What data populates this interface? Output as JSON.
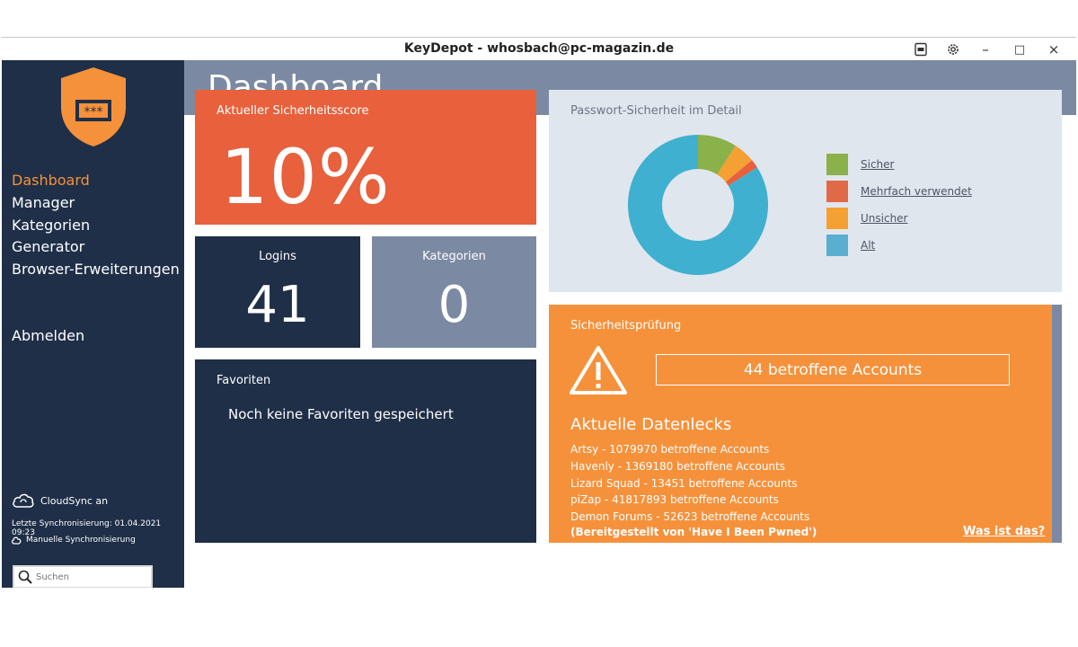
{
  "window": {
    "title": "KeyDepot - whosbach@pc-magazin.de",
    "controls": {
      "minimize": "–",
      "maximize": "□",
      "close": "×"
    },
    "icons": [
      "report-icon",
      "gear-icon"
    ]
  },
  "logo": {
    "text": "***",
    "color": "#f6913b"
  },
  "sidebar": {
    "items": [
      {
        "label": "Dashboard",
        "active": true
      },
      {
        "label": "Manager",
        "active": false
      },
      {
        "label": "Kategorien",
        "active": false
      },
      {
        "label": "Generator",
        "active": false
      },
      {
        "label": "Browser-Erweiterungen",
        "active": false
      }
    ],
    "logout_label": "Abmelden",
    "cloudsync_label": "CloudSync an",
    "last_sync": "Letzte Synchronisierung: 01.04.2021 09:23",
    "manual_sync_label": "Manuelle Synchronisierung",
    "search_placeholder": "Suchen"
  },
  "header": {
    "title": "Dashboard"
  },
  "score": {
    "label": "Aktueller Sicherheitsscore",
    "value": "10%"
  },
  "logins": {
    "label": "Logins",
    "value": "41"
  },
  "categories": {
    "label": "Kategorien",
    "value": "0"
  },
  "favorites": {
    "label": "Favoriten",
    "empty_text": "Noch keine Favoriten gespeichert"
  },
  "detail": {
    "label": "Passwort-Sicherheit im Detail",
    "legend": [
      {
        "label": "Sicher",
        "color": "#8ab14a"
      },
      {
        "label": "Mehrfach verwendet",
        "color": "#e06a47"
      },
      {
        "label": "Unsicher",
        "color": "#f5a033"
      },
      {
        "label": "Alt",
        "color": "#5aaed0"
      }
    ]
  },
  "chart_data": {
    "type": "pie",
    "donut": true,
    "categories": [
      "Sicher",
      "Unsicher",
      "Mehrfach verwendet",
      "Alt"
    ],
    "values": [
      0.09,
      0.05,
      0.02,
      0.84
    ],
    "colors": [
      "#8ab14a",
      "#f5a033",
      "#e8603c",
      "#3fb0cf"
    ],
    "title": "Passwort-Sicherheit im Detail",
    "legend_position": "right"
  },
  "check": {
    "label": "Sicherheitsprüfung",
    "affected": "44 betroffene Accounts",
    "leaks_title": "Aktuelle Datenlecks",
    "leaks": [
      "Artsy - 1079970 betroffene Accounts",
      "Havenly - 1369180 betroffene Accounts",
      "Lizard Squad - 13451 betroffene Accounts",
      "piZap - 41817893 betroffene Accounts",
      "Demon Forums - 52623 betroffene Accounts"
    ],
    "source_note": "(Bereitgestellt von 'Have I Been Pwned')",
    "what_link": "Was ist das?"
  },
  "colors": {
    "sidebar": "#1f2f48",
    "header": "#7b8aa2",
    "accent": "#f6913b",
    "score": "#e8603c",
    "detail_bg": "#e0e6ee"
  }
}
